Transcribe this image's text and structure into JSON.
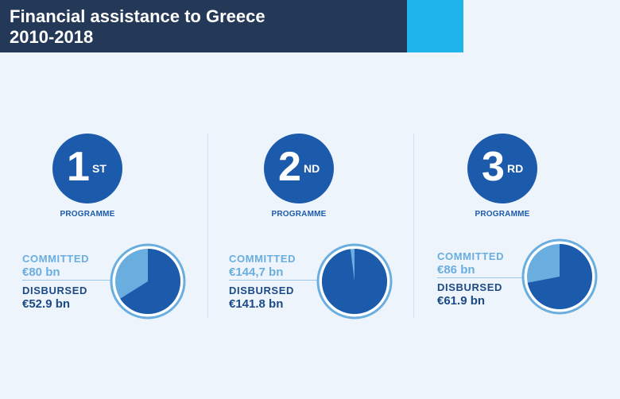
{
  "title_line1": "Financial assistance to Greece",
  "title_line2": "2010-2018",
  "colors": {
    "header": "#243957",
    "accent": "#1fb4ea",
    "committed": "#6aaee0",
    "disbursed": "#1c5aab"
  },
  "chart_data": {
    "type": "pie",
    "title": "Financial assistance to Greece 2010-2018",
    "programmes": [
      {
        "ordinal": "1",
        "suffix": "ST",
        "label": "PROGRAMME",
        "committed_label": "COMMITTED",
        "committed_text": "€80 bn",
        "committed": 80,
        "disbursed_label": "DISBURSED",
        "disbursed_text": "€52.9 bn",
        "disbursed": 52.9
      },
      {
        "ordinal": "2",
        "suffix": "ND",
        "label": "PROGRAMME",
        "committed_label": "COMMITTED",
        "committed_text": "€144,7 bn",
        "committed": 144.7,
        "disbursed_label": "DISBURSED",
        "disbursed_text": "€141.8 bn",
        "disbursed": 141.8
      },
      {
        "ordinal": "3",
        "suffix": "RD",
        "label": "PROGRAMME",
        "committed_label": "COMMITTED",
        "committed_text": "€86 bn",
        "committed": 86,
        "disbursed_label": "DISBURSED",
        "disbursed_text": "€61.9 bn",
        "disbursed": 61.9
      }
    ]
  }
}
